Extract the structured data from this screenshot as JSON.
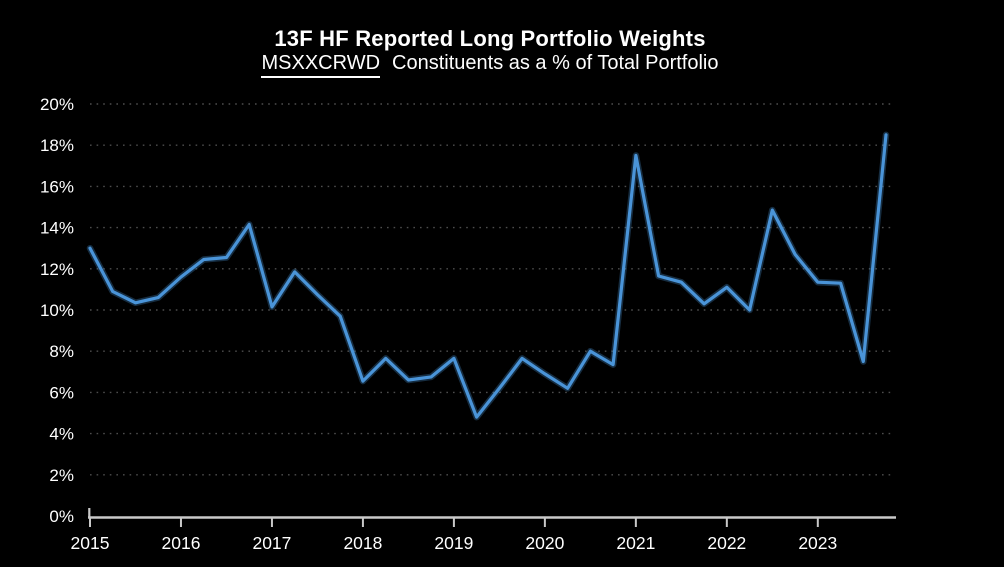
{
  "header": {
    "title": "13F HF Reported Long Portfolio Weights",
    "subtitle_ticker": "MSXXCRWD",
    "subtitle_rest": "Constituents as a % of Total Portfolio"
  },
  "colors": {
    "background": "#000000",
    "line": "#4a94d8",
    "text": "#ffffff",
    "grid": "#4d4d4d",
    "axis": "#c9c9c9"
  },
  "chart_data": {
    "type": "line",
    "title": "13F HF Reported Long Portfolio Weights",
    "subtitle": "MSXXCRWD Constituents as a % of Total Portfolio",
    "series_name": "MSXXCRWD constituents weight (% of total portfolio)",
    "x": [
      "2015Q1",
      "2015Q2",
      "2015Q3",
      "2015Q4",
      "2016Q1",
      "2016Q2",
      "2016Q3",
      "2016Q4",
      "2017Q1",
      "2017Q2",
      "2017Q3",
      "2017Q4",
      "2018Q1",
      "2018Q2",
      "2018Q3",
      "2018Q4",
      "2019Q1",
      "2019Q2",
      "2019Q3",
      "2019Q4",
      "2020Q1",
      "2020Q2",
      "2020Q3",
      "2020Q4",
      "2021Q1",
      "2021Q2",
      "2021Q3",
      "2021Q4",
      "2022Q1",
      "2022Q2",
      "2022Q3",
      "2022Q4",
      "2023Q1",
      "2023Q2",
      "2023Q3",
      "2023Q4"
    ],
    "values": [
      13.0,
      10.9,
      10.35,
      10.6,
      11.6,
      12.45,
      12.55,
      14.15,
      10.15,
      11.85,
      10.75,
      9.7,
      6.55,
      7.65,
      6.6,
      6.75,
      7.65,
      4.8,
      6.2,
      7.65,
      6.9,
      6.2,
      8.0,
      7.35,
      17.5,
      11.65,
      11.35,
      10.3,
      11.1,
      10.0,
      14.85,
      12.7,
      11.35,
      11.3,
      7.5,
      18.5
    ],
    "x_tick_labels": [
      "2015",
      "2016",
      "2017",
      "2018",
      "2019",
      "2020",
      "2021",
      "2022",
      "2023"
    ],
    "y_tick_labels": [
      "0%",
      "2%",
      "4%",
      "6%",
      "8%",
      "10%",
      "12%",
      "14%",
      "16%",
      "18%",
      "20%"
    ],
    "ylim": [
      0,
      20
    ],
    "xlabel": "",
    "ylabel": "",
    "grid": "dotted-horizontal",
    "legend": "none"
  }
}
